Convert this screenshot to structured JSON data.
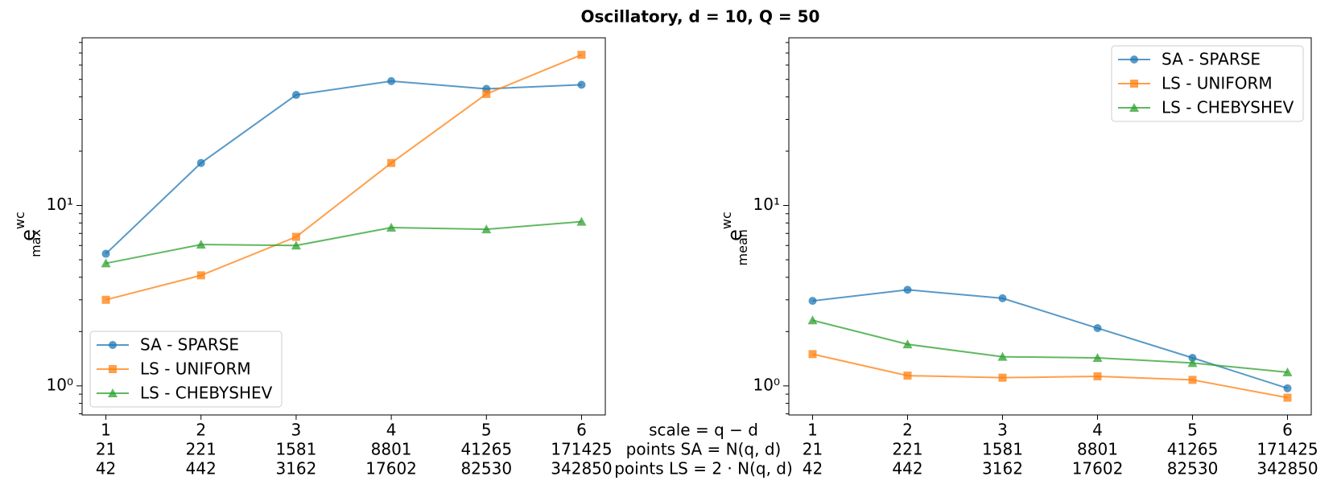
{
  "figure": {
    "title": "Oscillatory, d = 10, Q = 50",
    "row_labels": [
      "scale = q − d",
      "points SA = N(q, d)",
      "points LS = 2 · N(q, d)"
    ]
  },
  "chart_data": [
    {
      "type": "line",
      "ylog": true,
      "legend": "lower left",
      "ylabel": {
        "base": "e",
        "sup": "wc",
        "sub": "max"
      },
      "x": [
        1,
        2,
        3,
        4,
        5,
        6
      ],
      "xlim": [
        0.75,
        6.25
      ],
      "xticks": [
        1,
        2,
        3,
        4,
        5,
        6
      ],
      "points_sa": [
        21,
        221,
        1581,
        8801,
        41265,
        171425
      ],
      "points_ls": [
        42,
        442,
        3162,
        17602,
        82530,
        342850
      ],
      "ylim": [
        0.69,
        85
      ],
      "yticks": [
        {
          "value": 1,
          "label": "10⁰"
        },
        {
          "value": 10,
          "label": "10¹"
        }
      ],
      "yminor": [
        0.7,
        0.8,
        0.9,
        2,
        3,
        4,
        5,
        6,
        7,
        8,
        9,
        20,
        30,
        40,
        50,
        60,
        70,
        80
      ],
      "series": [
        {
          "name": "SA - SPARSE",
          "color": "#1f77b4",
          "marker": "circle",
          "values": [
            5.4,
            17.2,
            41,
            48.9,
            44.3,
            46.7
          ]
        },
        {
          "name": "LS - UNIFORM",
          "color": "#ff7f0e",
          "marker": "square",
          "values": [
            3.0,
            4.1,
            6.7,
            17.2,
            41.5,
            68.4
          ]
        },
        {
          "name": "LS - CHEBYSHEV",
          "color": "#2ca02c",
          "marker": "triangle",
          "values": [
            4.78,
            6.07,
            6.0,
            7.54,
            7.38,
            8.13
          ]
        }
      ]
    },
    {
      "type": "line",
      "ylog": true,
      "legend": "upper right",
      "ylabel": {
        "base": "e",
        "sup": "wc",
        "sub": "mean"
      },
      "x": [
        1,
        2,
        3,
        4,
        5,
        6
      ],
      "xlim": [
        0.75,
        6.25
      ],
      "xticks": [
        1,
        2,
        3,
        4,
        5,
        6
      ],
      "points_sa": [
        21,
        221,
        1581,
        8801,
        41265,
        171425
      ],
      "points_ls": [
        42,
        442,
        3162,
        17602,
        82530,
        342850
      ],
      "ylim": [
        0.69,
        85
      ],
      "yticks": [
        {
          "value": 1,
          "label": "10⁰"
        },
        {
          "value": 10,
          "label": "10¹"
        }
      ],
      "yminor": [
        0.7,
        0.8,
        0.9,
        2,
        3,
        4,
        5,
        6,
        7,
        8,
        9,
        20,
        30,
        40,
        50,
        60,
        70,
        80
      ],
      "series": [
        {
          "name": "SA - SPARSE",
          "color": "#1f77b4",
          "marker": "circle",
          "values": [
            2.96,
            3.41,
            3.06,
            2.09,
            1.43,
            0.97
          ]
        },
        {
          "name": "LS - UNIFORM",
          "color": "#ff7f0e",
          "marker": "square",
          "values": [
            1.5,
            1.14,
            1.11,
            1.13,
            1.08,
            0.86
          ]
        },
        {
          "name": "LS - CHEBYSHEV",
          "color": "#2ca02c",
          "marker": "triangle",
          "values": [
            2.31,
            1.7,
            1.45,
            1.43,
            1.34,
            1.19
          ]
        }
      ]
    }
  ]
}
